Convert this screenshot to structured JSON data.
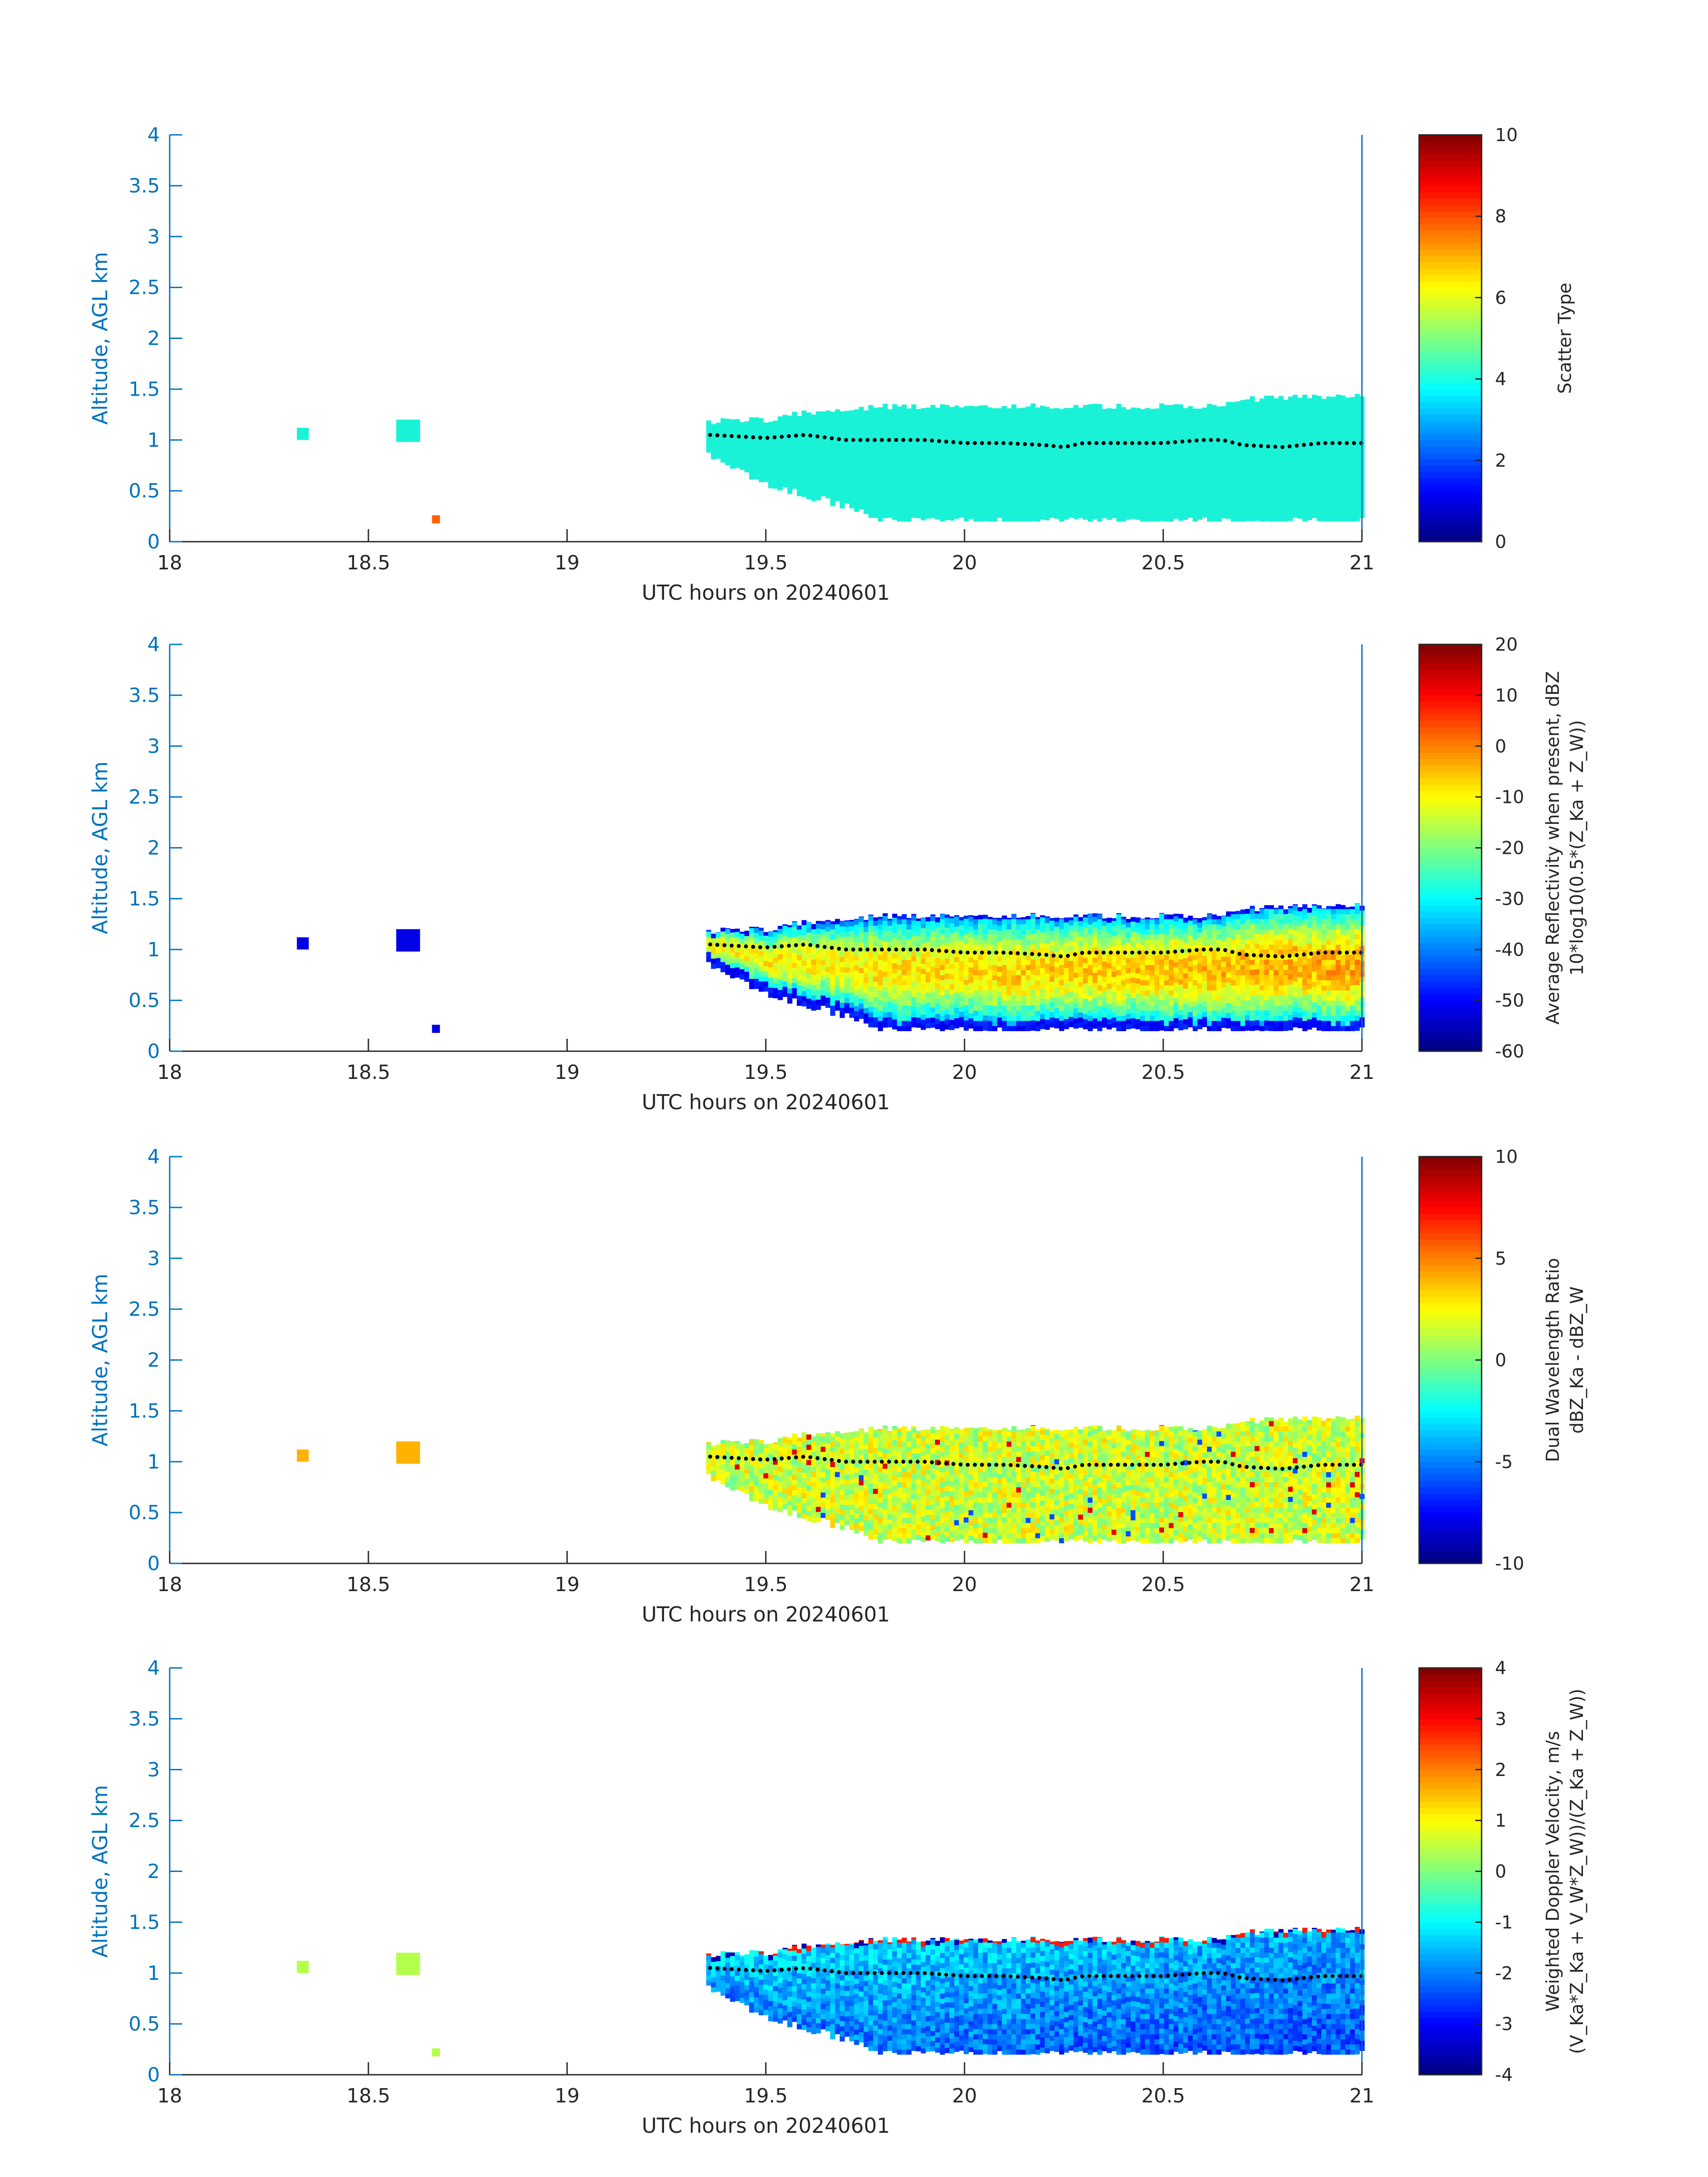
{
  "figure": {
    "xlabel": "UTC hours on 20240601",
    "ylabel": "Altitude, AGL km"
  },
  "chart_data": [
    {
      "type": "heatmap",
      "title": "",
      "xlabel": "UTC hours on 20240601",
      "ylabel": "Altitude, AGL km",
      "xlim": [
        18,
        21
      ],
      "ylim": [
        0,
        4
      ],
      "x_ticks": [
        "18",
        "18.5",
        "19",
        "19.5",
        "20",
        "20.5",
        "21"
      ],
      "y_ticks": [
        "0",
        "0.5",
        "1",
        "1.5",
        "2",
        "2.5",
        "3",
        "3.5",
        "4"
      ],
      "colorbar": {
        "label_lines": [
          "Scatter Type"
        ],
        "range": [
          0,
          10
        ],
        "ticks": [
          "0",
          "2",
          "4",
          "6",
          "8",
          "10"
        ]
      },
      "field": "scatter",
      "series": [
        {
          "name": "",
          "type": "line",
          "x": [
            19.36,
            19.5,
            19.6,
            19.7,
            19.8,
            19.9,
            20.0,
            20.1,
            20.2,
            20.25,
            20.3,
            20.4,
            20.5,
            20.6,
            20.65,
            20.7,
            20.8,
            20.9,
            21.0
          ],
          "y": [
            1.05,
            1.02,
            1.05,
            1.0,
            1.0,
            1.0,
            0.97,
            0.97,
            0.95,
            0.93,
            0.97,
            0.97,
            0.97,
            1.0,
            1.0,
            0.95,
            0.93,
            0.97,
            0.97
          ]
        }
      ]
    },
    {
      "type": "heatmap",
      "title": "",
      "xlabel": "UTC hours on 20240601",
      "ylabel": "Altitude, AGL km",
      "xlim": [
        18,
        21
      ],
      "ylim": [
        0,
        4
      ],
      "x_ticks": [
        "18",
        "18.5",
        "19",
        "19.5",
        "20",
        "20.5",
        "21"
      ],
      "y_ticks": [
        "0",
        "0.5",
        "1",
        "1.5",
        "2",
        "2.5",
        "3",
        "3.5",
        "4"
      ],
      "colorbar": {
        "label_lines": [
          "Average Reflectivity when present, dBZ",
          "10*log10(0.5*(Z_Ka + Z_W))"
        ],
        "range": [
          -60,
          20
        ],
        "ticks": [
          "-60",
          "-50",
          "-40",
          "-30",
          "-20",
          "-10",
          "0",
          "10",
          "20"
        ]
      },
      "field": "reflectivity",
      "series": [
        {
          "name": "",
          "type": "line",
          "x": [
            19.36,
            19.5,
            19.6,
            19.7,
            19.8,
            19.9,
            20.0,
            20.1,
            20.2,
            20.25,
            20.3,
            20.4,
            20.5,
            20.6,
            20.65,
            20.7,
            20.8,
            20.9,
            21.0
          ],
          "y": [
            1.05,
            1.02,
            1.05,
            1.0,
            1.0,
            1.0,
            0.97,
            0.97,
            0.95,
            0.93,
            0.97,
            0.97,
            0.97,
            1.0,
            1.0,
            0.95,
            0.93,
            0.97,
            0.97
          ]
        }
      ]
    },
    {
      "type": "heatmap",
      "title": "",
      "xlabel": "UTC hours on 20240601",
      "ylabel": "Altitude, AGL km",
      "xlim": [
        18,
        21
      ],
      "ylim": [
        0,
        4
      ],
      "x_ticks": [
        "18",
        "18.5",
        "19",
        "19.5",
        "20",
        "20.5",
        "21"
      ],
      "y_ticks": [
        "0",
        "0.5",
        "1",
        "1.5",
        "2",
        "2.5",
        "3",
        "3.5",
        "4"
      ],
      "colorbar": {
        "label_lines": [
          "Dual Wavelength Ratio",
          "dBZ_Ka - dBZ_W"
        ],
        "range": [
          -10,
          10
        ],
        "ticks": [
          "-10",
          "-5",
          "0",
          "5",
          "10"
        ]
      },
      "field": "dwr",
      "series": [
        {
          "name": "",
          "type": "line",
          "x": [
            19.36,
            19.5,
            19.6,
            19.7,
            19.8,
            19.9,
            20.0,
            20.1,
            20.2,
            20.25,
            20.3,
            20.4,
            20.5,
            20.6,
            20.65,
            20.7,
            20.8,
            20.9,
            21.0
          ],
          "y": [
            1.05,
            1.02,
            1.05,
            1.0,
            1.0,
            1.0,
            0.97,
            0.97,
            0.95,
            0.93,
            0.97,
            0.97,
            0.97,
            1.0,
            1.0,
            0.95,
            0.93,
            0.97,
            0.97
          ]
        }
      ]
    },
    {
      "type": "heatmap",
      "title": "",
      "xlabel": "UTC hours on 20240601",
      "ylabel": "Altitude, AGL km",
      "xlim": [
        18,
        21
      ],
      "ylim": [
        0,
        4
      ],
      "x_ticks": [
        "18",
        "18.5",
        "19",
        "19.5",
        "20",
        "20.5",
        "21"
      ],
      "y_ticks": [
        "0",
        "0.5",
        "1",
        "1.5",
        "2",
        "2.5",
        "3",
        "3.5",
        "4"
      ],
      "colorbar": {
        "label_lines": [
          "Weighted Doppler Velocity, m/s",
          "(V_Ka*Z_Ka + V_W*Z_W))/(Z_Ka + Z_W))"
        ],
        "range": [
          -4,
          4
        ],
        "ticks": [
          "-4",
          "-3",
          "-2",
          "-1",
          "0",
          "1",
          "2",
          "3",
          "4"
        ]
      },
      "field": "velocity",
      "series": [
        {
          "name": "",
          "type": "line",
          "x": [
            19.36,
            19.5,
            19.6,
            19.7,
            19.8,
            19.9,
            20.0,
            20.1,
            20.2,
            20.25,
            20.3,
            20.4,
            20.5,
            20.6,
            20.65,
            20.7,
            20.8,
            20.9,
            21.0
          ],
          "y": [
            1.05,
            1.02,
            1.05,
            1.0,
            1.0,
            1.0,
            0.97,
            0.97,
            0.95,
            0.93,
            0.97,
            0.97,
            0.97,
            1.0,
            1.0,
            0.95,
            0.93,
            0.97,
            0.97
          ]
        }
      ]
    }
  ],
  "cloud": {
    "x_range": [
      19.35,
      21.0
    ],
    "top": [
      [
        19.35,
        1.18
      ],
      [
        19.5,
        1.2
      ],
      [
        19.55,
        1.25
      ],
      [
        19.7,
        1.3
      ],
      [
        19.8,
        1.33
      ],
      [
        20.0,
        1.33
      ],
      [
        20.6,
        1.33
      ],
      [
        20.7,
        1.4
      ],
      [
        21.0,
        1.45
      ]
    ],
    "base": [
      [
        19.35,
        0.85
      ],
      [
        19.45,
        0.65
      ],
      [
        19.55,
        0.5
      ],
      [
        19.65,
        0.4
      ],
      [
        19.75,
        0.28
      ],
      [
        19.8,
        0.2
      ],
      [
        20.6,
        0.2
      ],
      [
        21.0,
        0.2
      ]
    ],
    "isolated": [
      {
        "x": [
          18.32,
          18.35
        ],
        "y": [
          1.0,
          1.12
        ]
      },
      {
        "x": [
          18.57,
          18.63
        ],
        "y": [
          0.98,
          1.2
        ]
      },
      {
        "x": [
          18.66,
          18.68
        ],
        "y": [
          0.18,
          0.26
        ]
      }
    ]
  },
  "colors": {
    "axis": "#0072bd",
    "scatter_cloud": "#1af2d8",
    "dot": "#000000"
  }
}
